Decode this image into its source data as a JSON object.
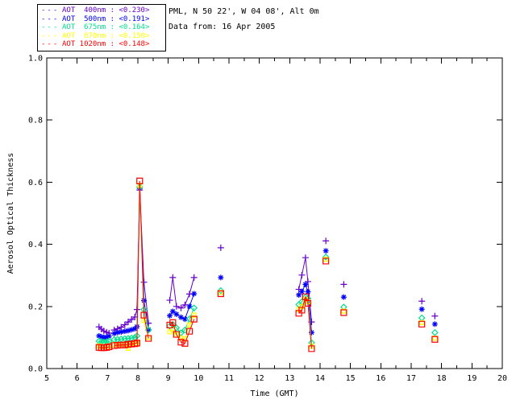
{
  "header": {
    "station_line": "PML, N 50 22', W 04 08', Alt 0m",
    "date_line": "Data from: 16 Apr 2005"
  },
  "chart_data": {
    "type": "scatter",
    "title": "",
    "xlabel": "Time (GMT)",
    "ylabel": "Aerosol Optical Thickness",
    "xlim": [
      5,
      20
    ],
    "ylim": [
      0.0,
      1.0
    ],
    "xticks": [
      5,
      6,
      7,
      8,
      9,
      10,
      11,
      12,
      13,
      14,
      15,
      16,
      17,
      18,
      19,
      20
    ],
    "x_minor_step": 0.5,
    "yticks": [
      0.0,
      0.2,
      0.4,
      0.6,
      0.8,
      1.0
    ],
    "ytick_labels": [
      "0.0",
      "0.2",
      "0.4",
      "0.6",
      "0.8",
      "1.0"
    ],
    "grid": false,
    "legend_position": "top-left-outside",
    "gap_break_hours": 0.16,
    "x": [
      6.72,
      6.8,
      6.88,
      6.97,
      7.05,
      7.22,
      7.33,
      7.45,
      7.57,
      7.68,
      7.79,
      7.9,
      7.97,
      8.06,
      8.2,
      8.35,
      9.05,
      9.15,
      9.27,
      9.42,
      9.55,
      9.7,
      9.85,
      10.73,
      13.3,
      13.4,
      13.52,
      13.6,
      13.72,
      14.19,
      14.78,
      17.35,
      17.78
    ],
    "series": [
      {
        "name": "AOT 400nm",
        "wl": "400nm",
        "legend_label": "AOT  400nm",
        "mean": "<0.230>",
        "color": "#6600CC",
        "marker": "plus",
        "values": [
          0.134,
          0.127,
          0.121,
          0.117,
          0.114,
          0.124,
          0.128,
          0.133,
          0.141,
          0.15,
          0.158,
          0.166,
          0.19,
          0.575,
          0.278,
          0.146,
          0.22,
          0.293,
          0.2,
          0.195,
          0.205,
          0.24,
          0.293,
          0.389,
          0.255,
          0.301,
          0.357,
          0.28,
          0.15,
          0.411,
          0.271,
          0.217,
          0.169
        ]
      },
      {
        "name": "AOT 500nm",
        "wl": "500nm",
        "legend_label": "AOT  500nm",
        "mean": "<0.191>",
        "color": "#0000FF",
        "marker": "asterisk",
        "values": [
          0.105,
          0.102,
          0.1,
          0.101,
          0.104,
          0.113,
          0.116,
          0.118,
          0.12,
          0.122,
          0.125,
          0.128,
          0.135,
          0.58,
          0.219,
          0.125,
          0.17,
          0.184,
          0.175,
          0.165,
          0.159,
          0.2,
          0.241,
          0.293,
          0.237,
          0.248,
          0.271,
          0.247,
          0.116,
          0.379,
          0.23,
          0.191,
          0.143
        ]
      },
      {
        "name": "AOT 675nm",
        "wl": "675nm",
        "legend_label": "AOT  675nm",
        "mean": "<0.164>",
        "color": "#00E08C",
        "marker": "diamond",
        "values": [
          0.088,
          0.086,
          0.085,
          0.086,
          0.088,
          0.093,
          0.094,
          0.095,
          0.096,
          0.097,
          0.098,
          0.1,
          0.105,
          0.585,
          0.19,
          0.124,
          0.137,
          0.142,
          0.131,
          0.115,
          0.124,
          0.16,
          0.195,
          0.251,
          0.206,
          0.215,
          0.23,
          0.225,
          0.083,
          0.359,
          0.198,
          0.163,
          0.116
        ]
      },
      {
        "name": "AOT 870nm",
        "wl": "870nm",
        "legend_label": "AOT  870nm",
        "mean": "<0.150>",
        "color": "#FFFF00",
        "marker": "square-small",
        "values": [
          0.073,
          0.071,
          0.07,
          0.071,
          0.073,
          0.077,
          0.078,
          0.078,
          0.077,
          0.065,
          0.078,
          0.08,
          0.085,
          0.59,
          0.155,
          0.1,
          0.118,
          0.125,
          0.108,
          0.098,
          0.095,
          0.14,
          0.172,
          0.245,
          0.19,
          0.2,
          0.222,
          0.215,
          0.072,
          0.352,
          0.185,
          0.148,
          0.098
        ]
      },
      {
        "name": "AOT 1020nm",
        "wl": "1020nm",
        "legend_label": "AOT 1020nm",
        "mean": "<0.148>",
        "color": "#FF0000",
        "marker": "square",
        "values": [
          0.068,
          0.067,
          0.067,
          0.068,
          0.07,
          0.074,
          0.075,
          0.076,
          0.076,
          0.078,
          0.079,
          0.08,
          0.082,
          0.604,
          0.172,
          0.097,
          0.14,
          0.148,
          0.11,
          0.085,
          0.081,
          0.12,
          0.159,
          0.241,
          0.178,
          0.188,
          0.231,
          0.21,
          0.064,
          0.346,
          0.18,
          0.143,
          0.094
        ]
      }
    ]
  },
  "layout_colors": {
    "axis": "#000000",
    "background": "#ffffff"
  }
}
